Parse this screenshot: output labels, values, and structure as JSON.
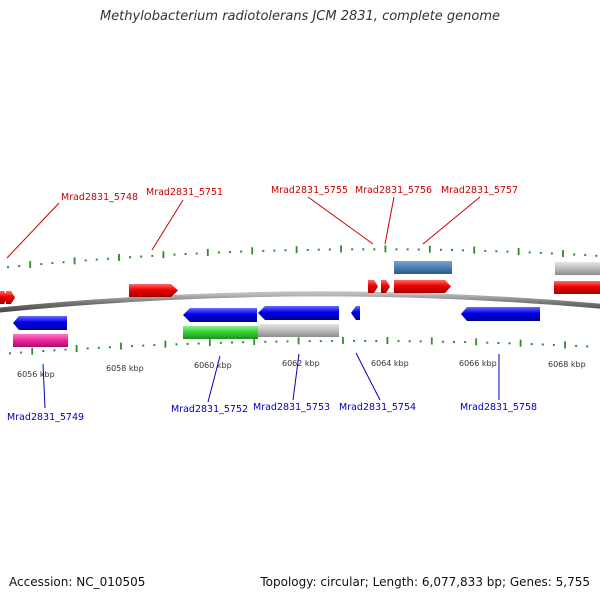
{
  "title": "Methylobacterium radiotolerans JCM 2831, complete genome",
  "footer": {
    "accession": "Accession: NC_010505",
    "stats": "Topology: circular; Length: 6,077,833 bp; Genes: 5,755"
  },
  "colors": {
    "forward_label": "#cc0000",
    "reverse_label": "#0000bb",
    "tick": "#2e8b2e",
    "backbone": "#8a8a8a",
    "red_gene": "#ee0000",
    "blue_gene": "#0000ee",
    "steelblue_gene": "#4a7fb5",
    "grey_gene": "#bbbbbb",
    "green_gene": "#33cc33",
    "pink_gene": "#ee2299"
  },
  "scale": {
    "unit": "kbp",
    "labels": [
      "6056 kbp",
      "6058 kbp",
      "6060 kbp",
      "6062 kbp",
      "6064 kbp",
      "6066 kbp",
      "6068 kbp"
    ]
  },
  "forward_genes": [
    {
      "label": "Mrad2831_5748",
      "color": "red_gene"
    },
    {
      "label": "Mrad2831_5751",
      "color": "red_gene"
    },
    {
      "label": "Mrad2831_5755",
      "color": "red_gene"
    },
    {
      "label": "Mrad2831_5756",
      "color": "red_gene"
    },
    {
      "label": "Mrad2831_5757",
      "color": "red_gene"
    }
  ],
  "reverse_genes": [
    {
      "label": "Mrad2831_5749",
      "color": "blue_gene"
    },
    {
      "label": "Mrad2831_5752",
      "color": "blue_gene"
    },
    {
      "label": "Mrad2831_5753",
      "color": "blue_gene"
    },
    {
      "label": "Mrad2831_5754",
      "color": "blue_gene"
    },
    {
      "label": "Mrad2831_5758",
      "color": "blue_gene"
    }
  ]
}
